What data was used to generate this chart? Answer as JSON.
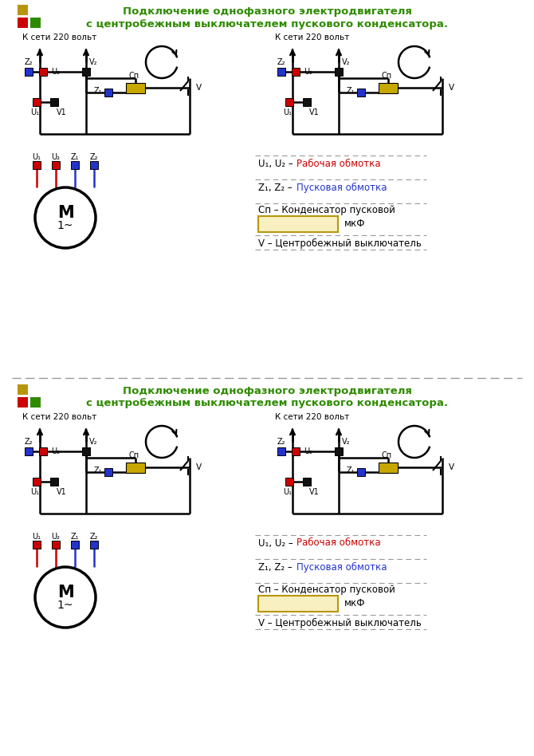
{
  "title_line1": "Подключение однофазного электродвигателя",
  "title_line2": "с центробежным выключателем пускового конденсатора.",
  "title_color": "#2e8b00",
  "bg_color": "#ffffff",
  "label_k_seti": "К сети 220 вольт",
  "label_u1u2_prefix": "U₁, U₂ – ",
  "label_rabochaya": "Рабочая обмотка",
  "label_z1z2_prefix": "Z₁, Z₂ – ",
  "label_puskovaya": "Пусковая обмотка",
  "label_cn": "Сп – Конденсатор пусковой",
  "label_mkf": "мкФ",
  "label_v": "V – Центробежный выключатель",
  "color_red": "#cc0000",
  "color_blue": "#2233cc",
  "color_black": "#111111",
  "color_yellow_cap": "#c8a800",
  "color_green": "#2e8b00",
  "color_gold": "#b8960c",
  "separator_color": "#999999"
}
